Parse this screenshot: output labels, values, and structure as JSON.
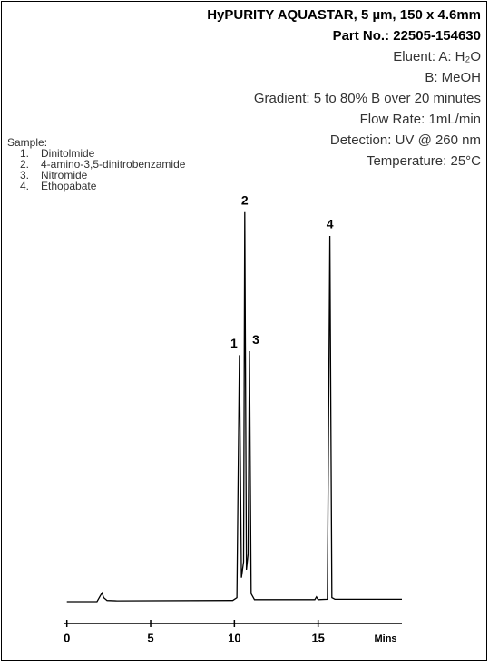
{
  "chart_data": {
    "type": "line",
    "title": "HyPURITY AQUASTAR, 5 µm, 150 x 4.6mm",
    "subtitle": "Part No.: 22505-154630",
    "conditions": [
      "Eluent: A: H₂O",
      "B: MeOH",
      "Gradient: 5 to 80% B over 20 minutes",
      "Flow Rate: 1mL/min",
      "Detection: UV @ 260 nm",
      "Temperature: 25°C"
    ],
    "sample": {
      "title": "Sample:",
      "items": [
        {
          "number": "1.",
          "name": "Dinitolmide"
        },
        {
          "number": "2.",
          "name": "4-amino-3,5-dinitrobenzamide"
        },
        {
          "number": "3.",
          "name": "Nitromide"
        },
        {
          "number": "4.",
          "name": "Ethopabate"
        }
      ]
    },
    "xlabel": "Mins",
    "xlim": [
      -0.2,
      20.0
    ],
    "xticks": [
      0,
      5,
      10,
      15
    ],
    "ylim": [
      0,
      100
    ],
    "series": [
      {
        "color": "#000000",
        "x": [
          0,
          1.8,
          2.0,
          2.1,
          2.2,
          2.4,
          3.0,
          9.9,
          10.15,
          10.3,
          10.42,
          10.55,
          10.62,
          10.72,
          10.82,
          10.9,
          11.0,
          11.2,
          14.8,
          14.9,
          15.0,
          15.55,
          15.7,
          15.82,
          16.0,
          20.0
        ],
        "values": [
          0,
          0,
          1.5,
          2.2,
          1,
          0.3,
          0.2,
          0.3,
          1,
          62,
          6,
          10,
          98,
          8,
          12,
          63,
          2,
          0.5,
          0.5,
          1.2,
          0.5,
          0.6,
          92,
          1,
          0.6,
          0.6
        ]
      }
    ],
    "peaks": [
      {
        "label": "1",
        "x": 10.3
      },
      {
        "label": "2",
        "x": 10.62
      },
      {
        "label": "3",
        "x": 10.9
      },
      {
        "label": "4",
        "x": 15.7
      }
    ]
  }
}
